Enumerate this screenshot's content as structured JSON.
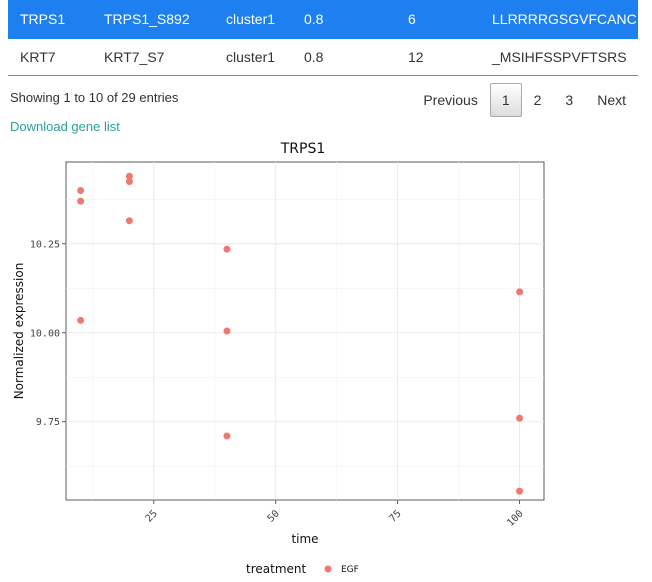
{
  "table": {
    "rows": [
      {
        "selected": true,
        "cells": [
          "TRPS1",
          "TRPS1_S892",
          "cluster1",
          "0.8",
          "6",
          "LLRRRRGSGVFCANC"
        ]
      },
      {
        "selected": false,
        "cells": [
          "KRT7",
          "KRT7_S7",
          "cluster1",
          "0.8",
          "12",
          "_MSIHFSSPVFTSRS"
        ]
      }
    ]
  },
  "table_info": "Showing 1 to 10 of 29 entries",
  "pagination": {
    "previous": "Previous",
    "pages": [
      "1",
      "2",
      "3"
    ],
    "current": "1",
    "next": "Next"
  },
  "download_link": "Download gene list",
  "colors": {
    "selected_row": "#1e7ff0",
    "point": "#f07870",
    "link": "#2aa198"
  },
  "chart_data": {
    "type": "scatter",
    "title": "TRPS1",
    "xlabel": "time",
    "ylabel": "Normalized expression",
    "xlim": [
      7,
      105
    ],
    "ylim": [
      9.53,
      10.48
    ],
    "x_ticks": [
      25,
      50,
      75,
      100
    ],
    "y_ticks": [
      9.75,
      10.0,
      10.25
    ],
    "y_tick_labels": [
      "9.75",
      "10.00",
      "10.25"
    ],
    "grid": true,
    "legend": {
      "title": "treatment",
      "position": "bottom",
      "entries": [
        "EGF"
      ]
    },
    "series": [
      {
        "name": "EGF",
        "points": [
          {
            "x": 10,
            "y": 10.4
          },
          {
            "x": 10,
            "y": 10.37
          },
          {
            "x": 10,
            "y": 10.035
          },
          {
            "x": 20,
            "y": 10.44
          },
          {
            "x": 20,
            "y": 10.425
          },
          {
            "x": 20,
            "y": 10.315
          },
          {
            "x": 40,
            "y": 10.235
          },
          {
            "x": 40,
            "y": 10.005
          },
          {
            "x": 40,
            "y": 9.71
          },
          {
            "x": 100,
            "y": 10.115
          },
          {
            "x": 100,
            "y": 9.76
          },
          {
            "x": 100,
            "y": 9.555
          }
        ]
      }
    ]
  }
}
